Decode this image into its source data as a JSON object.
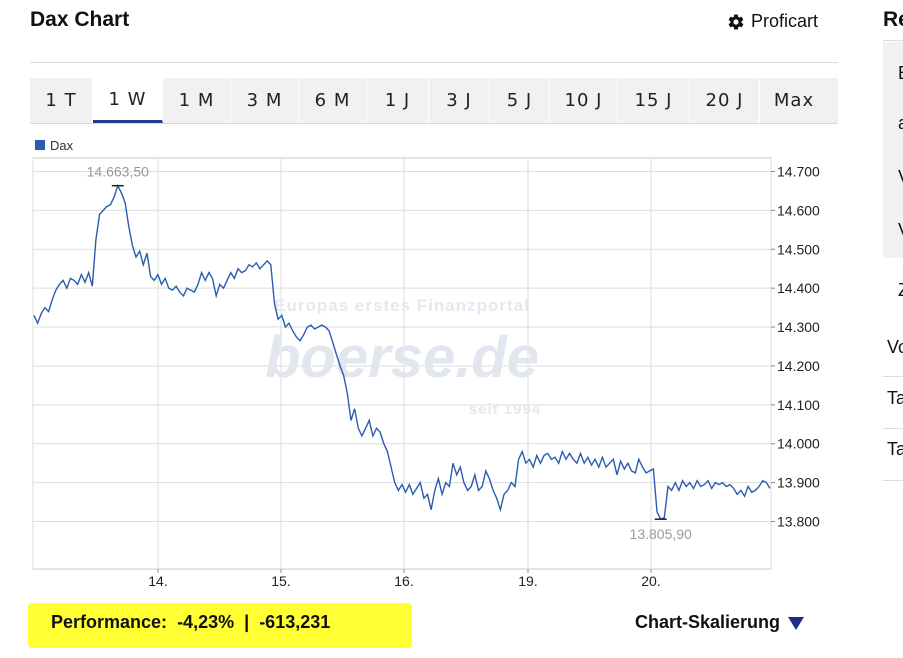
{
  "header": {
    "title": "Dax Chart",
    "proficart_label": "Proficart",
    "gear_icon": "gear-icon"
  },
  "tabs": [
    {
      "label": "1 T"
    },
    {
      "label": "1 W"
    },
    {
      "label": "1 M"
    },
    {
      "label": "3 M"
    },
    {
      "label": "6 M"
    },
    {
      "label": "1 J"
    },
    {
      "label": "3 J"
    },
    {
      "label": "5 J"
    },
    {
      "label": "10 J"
    },
    {
      "label": "15 J"
    },
    {
      "label": "20 J"
    },
    {
      "label": "Max"
    }
  ],
  "active_tab": "1 W",
  "chart_data": {
    "type": "line",
    "series": [
      {
        "name": "Dax",
        "color": "#2a5db0",
        "values": [
          14330,
          14310,
          14335,
          14350,
          14340,
          14370,
          14395,
          14410,
          14420,
          14400,
          14425,
          14420,
          14410,
          14435,
          14415,
          14440,
          14405,
          14525,
          14590,
          14600,
          14610,
          14615,
          14635,
          14663.5,
          14645,
          14620,
          14560,
          14510,
          14480,
          14495,
          14460,
          14490,
          14430,
          14420,
          14435,
          14410,
          14425,
          14400,
          14395,
          14405,
          14390,
          14380,
          14400,
          14395,
          14390,
          14410,
          14440,
          14420,
          14440,
          14425,
          14380,
          14410,
          14400,
          14420,
          14440,
          14425,
          14450,
          14440,
          14445,
          14460,
          14455,
          14465,
          14450,
          14460,
          14470,
          14460,
          14360,
          14320,
          14330,
          14300,
          14310,
          14290,
          14275,
          14265,
          14280,
          14300,
          14305,
          14295,
          14300,
          14305,
          14300,
          14290,
          14260,
          14230,
          14200,
          14175,
          14130,
          14060,
          14090,
          14040,
          14020,
          14040,
          14060,
          14020,
          14040,
          14030,
          14000,
          13980,
          13940,
          13900,
          13880,
          13895,
          13875,
          13895,
          13870,
          13885,
          13900,
          13860,
          13870,
          13830,
          13880,
          13910,
          13870,
          13900,
          13890,
          13950,
          13920,
          13940,
          13900,
          13880,
          13890,
          13920,
          13880,
          13890,
          13930,
          13910,
          13880,
          13860,
          13830,
          13870,
          13880,
          13900,
          13890,
          13960,
          13980,
          13950,
          13960,
          13940,
          13970,
          13950,
          13970,
          13975,
          13960,
          13965,
          13950,
          13980,
          13960,
          13975,
          13960,
          13950,
          13975,
          13950,
          13965,
          13945,
          13960,
          13940,
          13965,
          13940,
          13950,
          13960,
          13920,
          13955,
          13935,
          13950,
          13930,
          13925,
          13960,
          13940,
          13925,
          13930,
          13935,
          13825,
          13805.9,
          13810,
          13890,
          13880,
          13900,
          13880,
          13905,
          13890,
          13900,
          13885,
          13905,
          13890,
          13895,
          13905,
          13885,
          13900,
          13895,
          13900,
          13890,
          13895,
          13885,
          13870,
          13880,
          13865,
          13890,
          13875,
          13880,
          13890,
          13905,
          13900,
          13885
        ]
      }
    ],
    "x_labels": [
      "14.",
      "15.",
      "16.",
      "19.",
      "20."
    ],
    "y_ticks": [
      "14.700",
      "14.600",
      "14.500",
      "14.400",
      "14.300",
      "14.200",
      "14.100",
      "14.000",
      "13.900",
      "13.800"
    ],
    "ylim": [
      13750,
      14760
    ],
    "grid": true,
    "legend": "top-left",
    "annotations": [
      {
        "label": "14.663,50",
        "value": 14663.5,
        "kind": "max"
      },
      {
        "label": "13.805,90",
        "value": 13805.9,
        "kind": "min"
      }
    ],
    "watermark": {
      "line1": "Europas erstes Finanzportal",
      "line2": "boerse.de",
      "line3": "seit 1994"
    }
  },
  "footer": {
    "performance_label": "Performance:",
    "performance_pct": "-4,23%",
    "separator": "|",
    "performance_abs": "-613,231",
    "skalierung_label": "Chart-Skalierung",
    "highlight_color": "#ffff33"
  },
  "right_panel": {
    "title": "Re",
    "items": [
      "E",
      "a",
      "V",
      "V",
      "Z",
      "Vo",
      "Ta",
      "Ta"
    ]
  }
}
